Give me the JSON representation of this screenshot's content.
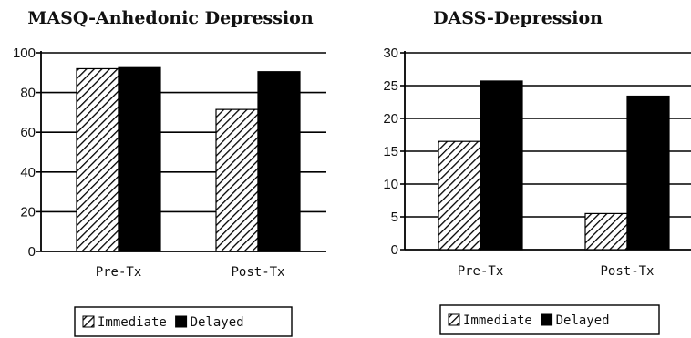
{
  "colors": {
    "immediate_fill": "hatched black diagonal",
    "delayed_fill": "#000000",
    "grid": "#000000"
  },
  "chart_data": [
    {
      "type": "bar",
      "title": "MASQ-Anhedonic Depression",
      "categories": [
        "Pre-Tx",
        "Post-Tx"
      ],
      "series": [
        {
          "name": "Immediate",
          "values": [
            92,
            71.5
          ]
        },
        {
          "name": "Delayed",
          "values": [
            93,
            90.5
          ]
        }
      ],
      "ylim": [
        0,
        100
      ],
      "yticks": [
        0,
        20,
        40,
        60,
        80,
        100
      ],
      "xlabel": "",
      "ylabel": "",
      "grid": true,
      "legend": "bottom"
    },
    {
      "type": "bar",
      "title": "DASS-Depression",
      "categories": [
        "Pre-Tx",
        "Post-Tx"
      ],
      "series": [
        {
          "name": "Immediate",
          "values": [
            16.5,
            5.5
          ]
        },
        {
          "name": "Delayed",
          "values": [
            25.7,
            23.4
          ]
        }
      ],
      "ylim": [
        0,
        30
      ],
      "yticks": [
        0,
        5,
        10,
        15,
        20,
        25,
        30
      ],
      "xlabel": "",
      "ylabel": "",
      "grid": true,
      "legend": "bottom"
    }
  ]
}
